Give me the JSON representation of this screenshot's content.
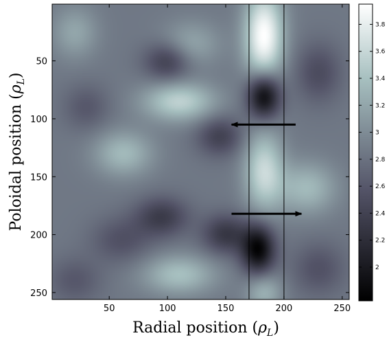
{
  "chart_data": {
    "type": "heatmap",
    "colormap": "bone",
    "xlabel": "Radial position",
    "xlabel_symbol": "ρ",
    "xlabel_sub": "L",
    "ylabel": "Poloidal position",
    "ylabel_symbol": "ρ",
    "ylabel_sub": "L",
    "xlim": [
      1,
      256
    ],
    "ylim": [
      256,
      1
    ],
    "xticks": [
      50,
      100,
      150,
      200,
      250
    ],
    "yticks": [
      50,
      100,
      150,
      200,
      250
    ],
    "colorbar": {
      "range": [
        1.75,
        3.95
      ],
      "ticks": [
        2,
        2.2,
        2.4,
        2.6,
        2.8,
        3,
        3.2,
        3.4,
        3.6,
        3.8
      ]
    },
    "background_level": 2.85,
    "features": [
      {
        "x": 183,
        "y": 28,
        "value": 3.95,
        "sx": 12,
        "sy": 28
      },
      {
        "x": 183,
        "y": 145,
        "value": 3.6,
        "sx": 12,
        "sy": 25
      },
      {
        "x": 183,
        "y": 250,
        "value": 3.3,
        "sx": 11,
        "sy": 12
      },
      {
        "x": 183,
        "y": 80,
        "value": 1.75,
        "sx": 10,
        "sy": 14
      },
      {
        "x": 178,
        "y": 213,
        "value": 1.8,
        "sx": 10,
        "sy": 15
      },
      {
        "x": 110,
        "y": 85,
        "value": 3.55,
        "sx": 22,
        "sy": 12
      },
      {
        "x": 110,
        "y": 235,
        "value": 3.4,
        "sx": 22,
        "sy": 12
      },
      {
        "x": 62,
        "y": 130,
        "value": 3.35,
        "sx": 18,
        "sy": 14
      },
      {
        "x": 220,
        "y": 160,
        "value": 3.35,
        "sx": 18,
        "sy": 16
      },
      {
        "x": 120,
        "y": 35,
        "value": 3.2,
        "sx": 18,
        "sy": 14
      },
      {
        "x": 20,
        "y": 25,
        "value": 3.2,
        "sx": 14,
        "sy": 16
      },
      {
        "x": 100,
        "y": 50,
        "value": 2.35,
        "sx": 14,
        "sy": 12
      },
      {
        "x": 145,
        "y": 115,
        "value": 2.4,
        "sx": 14,
        "sy": 12
      },
      {
        "x": 95,
        "y": 185,
        "value": 2.35,
        "sx": 16,
        "sy": 12
      },
      {
        "x": 150,
        "y": 200,
        "value": 2.3,
        "sx": 14,
        "sy": 12
      },
      {
        "x": 60,
        "y": 205,
        "value": 2.55,
        "sx": 18,
        "sy": 14
      },
      {
        "x": 230,
        "y": 60,
        "value": 2.5,
        "sx": 14,
        "sy": 18
      },
      {
        "x": 230,
        "y": 230,
        "value": 2.55,
        "sx": 16,
        "sy": 16
      },
      {
        "x": 20,
        "y": 240,
        "value": 2.6,
        "sx": 16,
        "sy": 14
      },
      {
        "x": 30,
        "y": 90,
        "value": 2.6,
        "sx": 14,
        "sy": 14
      }
    ],
    "vertical_lines_x": [
      170,
      200
    ],
    "arrows": [
      {
        "from": [
          210,
          105
        ],
        "to": [
          155,
          105
        ]
      },
      {
        "from": [
          155,
          182
        ],
        "to": [
          215,
          182
        ]
      }
    ]
  }
}
